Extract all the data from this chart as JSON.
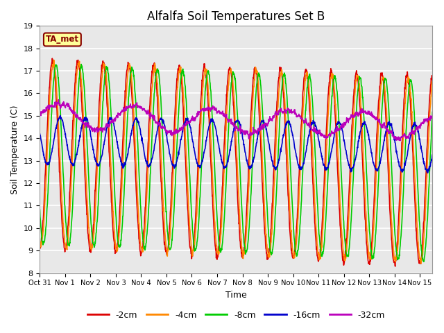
{
  "title": "Alfalfa Soil Temperatures Set B",
  "xlabel": "Time",
  "ylabel": "Soil Temperature (C)",
  "ylim": [
    8.0,
    19.0
  ],
  "yticks": [
    8.0,
    9.0,
    10.0,
    11.0,
    12.0,
    13.0,
    14.0,
    15.0,
    16.0,
    17.0,
    18.0,
    19.0
  ],
  "xtick_labels": [
    "Oct 31",
    "Nov 1",
    "Nov 2",
    "Nov 3",
    "Nov 4",
    "Nov 5",
    "Nov 6",
    "Nov 7",
    "Nov 8",
    "Nov 9",
    "Nov 10",
    "Nov 11",
    "Nov 12",
    "Nov 13",
    "Nov 14",
    "Nov 15"
  ],
  "legend_labels": [
    "-2cm",
    "-4cm",
    "-8cm",
    "-16cm",
    "-32cm"
  ],
  "line_colors": [
    "#dd0000",
    "#ff8800",
    "#00cc00",
    "#0000cc",
    "#bb00bb"
  ],
  "line_widths": [
    1.2,
    1.2,
    1.2,
    1.2,
    1.2
  ],
  "annotation_text": "TA_met",
  "annotation_color": "#880000",
  "annotation_bg": "#ffff99",
  "background_color": "#e0e0e0",
  "plot_bg": "#e8e8e8",
  "title_fontsize": 12,
  "axis_fontsize": 9,
  "legend_fontsize": 9,
  "n_days": 15.5,
  "mean_shallow": 13.3,
  "amp_2cm": 4.2,
  "amp_4cm": 4.1,
  "amp_8cm": 4.0,
  "amp_16cm": 1.05,
  "amp_32cm": 0.55,
  "lag_2cm": 0.0,
  "lag_4cm": 0.04,
  "lag_8cm": 0.14,
  "lag_16cm": 0.3,
  "lag_32cm": 0.0,
  "mean_16cm": 13.9,
  "mean_32cm": 15.0,
  "trend_shallow": -0.048,
  "trend_16cm": -0.02,
  "trend_32cm": -0.03
}
